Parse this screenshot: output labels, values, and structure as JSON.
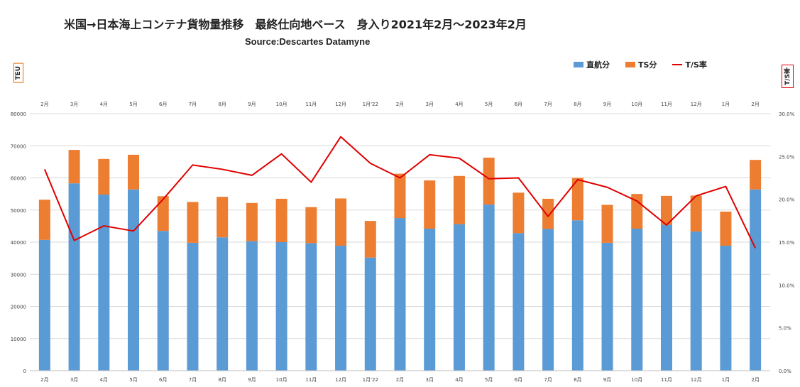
{
  "title": "米国→日本海上コンテナ貨物量推移　最終仕向地ベース　身入り2021年2月～2023年2月",
  "subtitle": "Source:Descartes Datamyne",
  "left_axis_label": "TEU",
  "right_axis_label": "T/S率",
  "colors": {
    "direct": "#5b9bd5",
    "ts": "#ed7d31",
    "ratio": "#e00000",
    "grid": "#d9d9d9"
  },
  "chart_data": {
    "type": "bar",
    "stacked": true,
    "categories": [
      "2月",
      "3月",
      "4月",
      "5月",
      "6月",
      "7月",
      "8月",
      "9月",
      "10月",
      "11月",
      "12月",
      "1月'22",
      "2月",
      "3月",
      "4月",
      "5月",
      "6月",
      "7月",
      "8月",
      "9月",
      "10月",
      "11月",
      "12月",
      "1月",
      "2月"
    ],
    "series": [
      {
        "name": "直航分",
        "type": "bar",
        "axis": "left",
        "values": [
          40700,
          58300,
          54800,
          56400,
          43500,
          39800,
          41500,
          40300,
          40000,
          39700,
          38900,
          35200,
          47500,
          44200,
          45600,
          51700,
          42800,
          44100,
          46800,
          39800,
          44200,
          45400,
          43300,
          38900,
          56400
        ]
      },
      {
        "name": "TS分",
        "type": "bar",
        "axis": "left",
        "values": [
          12500,
          10400,
          11100,
          10800,
          10800,
          12700,
          12600,
          11900,
          13500,
          11200,
          14700,
          11400,
          13800,
          15000,
          15000,
          14600,
          12600,
          9400,
          13200,
          11800,
          10800,
          9000,
          11200,
          10600,
          9200
        ]
      },
      {
        "name": "T/S率",
        "type": "line",
        "axis": "right",
        "values": [
          0.235,
          0.152,
          0.169,
          0.163,
          0.2,
          0.24,
          0.235,
          0.228,
          0.253,
          0.22,
          0.273,
          0.242,
          0.225,
          0.252,
          0.248,
          0.224,
          0.225,
          0.18,
          0.223,
          0.214,
          0.198,
          0.17,
          0.204,
          0.215,
          0.143
        ]
      }
    ],
    "y_left": {
      "min": 0,
      "max": 80000,
      "ticks": [
        "0",
        "10000",
        "20000",
        "30000",
        "40000",
        "50000",
        "60000",
        "70000",
        "80000"
      ]
    },
    "y_right": {
      "min": 0,
      "max": 0.3,
      "ticks": [
        "0.0%",
        "5.0%",
        "10.0%",
        "15.0%",
        "20.0%",
        "25.0%",
        "30.0%"
      ]
    },
    "grid": true,
    "legend": "top-right"
  }
}
